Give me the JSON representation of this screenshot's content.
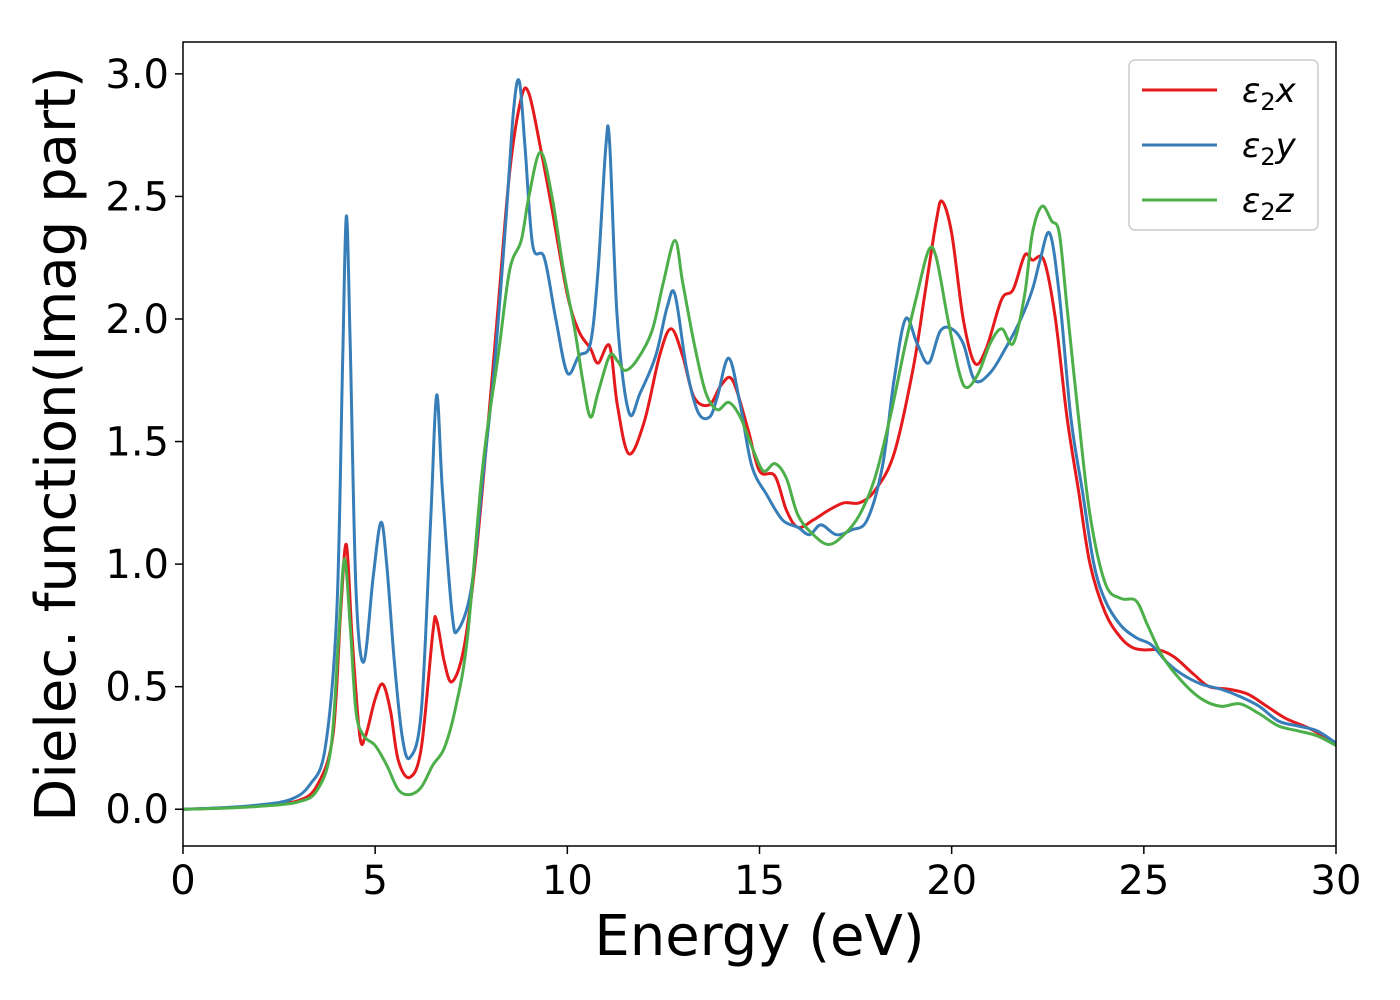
{
  "chart_data": {
    "type": "line",
    "title": "",
    "xlabel": "Energy (eV)",
    "ylabel": "Dielec. function(Imag part)",
    "xlim": [
      0,
      30
    ],
    "ylim": [
      -0.15,
      3.13
    ],
    "xticks": [
      0,
      5,
      10,
      15,
      20,
      25,
      30
    ],
    "yticks": [
      0.0,
      0.5,
      1.0,
      1.5,
      2.0,
      2.5,
      3.0
    ],
    "xtick_labels": [
      "0",
      "5",
      "10",
      "15",
      "20",
      "25",
      "30"
    ],
    "ytick_labels": [
      "0.0",
      "0.5",
      "1.0",
      "1.5",
      "2.0",
      "2.5",
      "3.0"
    ],
    "grid": false,
    "legend_position": "top-right",
    "series": [
      {
        "name": "ε2x",
        "legend_main": "ε",
        "legend_sub": "2",
        "legend_var": "x",
        "color": "#e41a1c",
        "points": [
          [
            0,
            0
          ],
          [
            1,
            0.005
          ],
          [
            2,
            0.015
          ],
          [
            3,
            0.035
          ],
          [
            3.5,
            0.1
          ],
          [
            3.9,
            0.3
          ],
          [
            4.1,
            0.8
          ],
          [
            4.25,
            1.08
          ],
          [
            4.4,
            0.7
          ],
          [
            4.6,
            0.3
          ],
          [
            4.75,
            0.3
          ],
          [
            5.0,
            0.45
          ],
          [
            5.2,
            0.51
          ],
          [
            5.4,
            0.4
          ],
          [
            5.6,
            0.2
          ],
          [
            5.9,
            0.13
          ],
          [
            6.2,
            0.25
          ],
          [
            6.5,
            0.72
          ],
          [
            6.6,
            0.77
          ],
          [
            6.8,
            0.6
          ],
          [
            7.0,
            0.52
          ],
          [
            7.3,
            0.65
          ],
          [
            7.6,
            1.0
          ],
          [
            7.9,
            1.5
          ],
          [
            8.2,
            2.05
          ],
          [
            8.5,
            2.6
          ],
          [
            8.8,
            2.9
          ],
          [
            9.0,
            2.92
          ],
          [
            9.3,
            2.7
          ],
          [
            9.6,
            2.45
          ],
          [
            10.0,
            2.1
          ],
          [
            10.3,
            1.95
          ],
          [
            10.6,
            1.88
          ],
          [
            10.8,
            1.82
          ],
          [
            11.1,
            1.89
          ],
          [
            11.3,
            1.65
          ],
          [
            11.6,
            1.45
          ],
          [
            12.0,
            1.58
          ],
          [
            12.4,
            1.85
          ],
          [
            12.7,
            1.96
          ],
          [
            13.0,
            1.85
          ],
          [
            13.3,
            1.68
          ],
          [
            13.7,
            1.65
          ],
          [
            14.0,
            1.73
          ],
          [
            14.3,
            1.75
          ],
          [
            14.7,
            1.55
          ],
          [
            15.0,
            1.38
          ],
          [
            15.4,
            1.36
          ],
          [
            15.7,
            1.22
          ],
          [
            16.0,
            1.15
          ],
          [
            16.4,
            1.18
          ],
          [
            16.8,
            1.22
          ],
          [
            17.2,
            1.25
          ],
          [
            17.6,
            1.25
          ],
          [
            18.0,
            1.3
          ],
          [
            18.5,
            1.45
          ],
          [
            19.0,
            1.8
          ],
          [
            19.3,
            2.1
          ],
          [
            19.6,
            2.4
          ],
          [
            19.75,
            2.48
          ],
          [
            20.0,
            2.35
          ],
          [
            20.3,
            2.0
          ],
          [
            20.6,
            1.82
          ],
          [
            20.9,
            1.88
          ],
          [
            21.3,
            2.08
          ],
          [
            21.6,
            2.12
          ],
          [
            21.9,
            2.26
          ],
          [
            22.1,
            2.24
          ],
          [
            22.4,
            2.24
          ],
          [
            22.7,
            2.0
          ],
          [
            23.0,
            1.6
          ],
          [
            23.3,
            1.3
          ],
          [
            23.6,
            1.0
          ],
          [
            24.0,
            0.8
          ],
          [
            24.4,
            0.7
          ],
          [
            24.7,
            0.66
          ],
          [
            25.0,
            0.65
          ],
          [
            25.4,
            0.65
          ],
          [
            25.8,
            0.62
          ],
          [
            26.3,
            0.55
          ],
          [
            26.7,
            0.5
          ],
          [
            27.2,
            0.49
          ],
          [
            27.7,
            0.47
          ],
          [
            28.2,
            0.42
          ],
          [
            28.7,
            0.37
          ],
          [
            29.3,
            0.33
          ],
          [
            30,
            0.27
          ]
        ]
      },
      {
        "name": "ε2y",
        "legend_main": "ε",
        "legend_sub": "2",
        "legend_var": "y",
        "color": "#377eb8",
        "points": [
          [
            0,
            0
          ],
          [
            1,
            0.006
          ],
          [
            2,
            0.018
          ],
          [
            2.8,
            0.04
          ],
          [
            3.3,
            0.1
          ],
          [
            3.7,
            0.25
          ],
          [
            4.0,
            0.8
          ],
          [
            4.15,
            1.8
          ],
          [
            4.25,
            2.42
          ],
          [
            4.35,
            1.9
          ],
          [
            4.5,
            0.9
          ],
          [
            4.7,
            0.6
          ],
          [
            4.95,
            0.95
          ],
          [
            5.15,
            1.17
          ],
          [
            5.3,
            1.0
          ],
          [
            5.5,
            0.6
          ],
          [
            5.7,
            0.3
          ],
          [
            5.9,
            0.21
          ],
          [
            6.2,
            0.4
          ],
          [
            6.45,
            1.2
          ],
          [
            6.6,
            1.69
          ],
          [
            6.75,
            1.3
          ],
          [
            7.0,
            0.8
          ],
          [
            7.15,
            0.73
          ],
          [
            7.5,
            0.9
          ],
          [
            7.8,
            1.35
          ],
          [
            8.1,
            1.8
          ],
          [
            8.4,
            2.4
          ],
          [
            8.6,
            2.85
          ],
          [
            8.75,
            2.97
          ],
          [
            8.9,
            2.7
          ],
          [
            9.1,
            2.3
          ],
          [
            9.4,
            2.25
          ],
          [
            9.7,
            2.0
          ],
          [
            10.0,
            1.78
          ],
          [
            10.3,
            1.85
          ],
          [
            10.6,
            1.9
          ],
          [
            10.8,
            2.2
          ],
          [
            11.0,
            2.7
          ],
          [
            11.1,
            2.72
          ],
          [
            11.3,
            2.0
          ],
          [
            11.6,
            1.62
          ],
          [
            11.9,
            1.7
          ],
          [
            12.3,
            1.85
          ],
          [
            12.6,
            2.05
          ],
          [
            12.8,
            2.1
          ],
          [
            13.1,
            1.8
          ],
          [
            13.4,
            1.62
          ],
          [
            13.7,
            1.6
          ],
          [
            13.9,
            1.68
          ],
          [
            14.2,
            1.84
          ],
          [
            14.5,
            1.65
          ],
          [
            14.8,
            1.4
          ],
          [
            15.2,
            1.28
          ],
          [
            15.6,
            1.18
          ],
          [
            16.0,
            1.15
          ],
          [
            16.3,
            1.12
          ],
          [
            16.6,
            1.16
          ],
          [
            17.0,
            1.12
          ],
          [
            17.4,
            1.14
          ],
          [
            17.8,
            1.18
          ],
          [
            18.2,
            1.4
          ],
          [
            18.5,
            1.75
          ],
          [
            18.8,
            2.0
          ],
          [
            19.1,
            1.9
          ],
          [
            19.4,
            1.82
          ],
          [
            19.7,
            1.95
          ],
          [
            20.0,
            1.96
          ],
          [
            20.3,
            1.9
          ],
          [
            20.6,
            1.75
          ],
          [
            21.0,
            1.78
          ],
          [
            21.4,
            1.88
          ],
          [
            21.8,
            2.0
          ],
          [
            22.1,
            2.12
          ],
          [
            22.3,
            2.24
          ],
          [
            22.55,
            2.35
          ],
          [
            22.8,
            2.1
          ],
          [
            23.1,
            1.6
          ],
          [
            23.4,
            1.3
          ],
          [
            23.7,
            1.0
          ],
          [
            24.0,
            0.85
          ],
          [
            24.4,
            0.75
          ],
          [
            24.8,
            0.7
          ],
          [
            25.2,
            0.67
          ],
          [
            25.6,
            0.6
          ],
          [
            26.0,
            0.55
          ],
          [
            26.5,
            0.51
          ],
          [
            27.0,
            0.49
          ],
          [
            27.5,
            0.46
          ],
          [
            28.0,
            0.42
          ],
          [
            28.5,
            0.36
          ],
          [
            29.0,
            0.34
          ],
          [
            29.5,
            0.32
          ],
          [
            30,
            0.27
          ]
        ]
      },
      {
        "name": "ε2z",
        "legend_main": "ε",
        "legend_sub": "2",
        "legend_var": "z",
        "color": "#4daf4a",
        "points": [
          [
            0,
            0
          ],
          [
            1,
            0.004
          ],
          [
            2,
            0.012
          ],
          [
            3,
            0.03
          ],
          [
            3.5,
            0.08
          ],
          [
            3.85,
            0.25
          ],
          [
            4.05,
            0.7
          ],
          [
            4.2,
            1.02
          ],
          [
            4.35,
            0.75
          ],
          [
            4.5,
            0.4
          ],
          [
            4.7,
            0.3
          ],
          [
            5.0,
            0.26
          ],
          [
            5.3,
            0.18
          ],
          [
            5.6,
            0.08
          ],
          [
            5.9,
            0.06
          ],
          [
            6.2,
            0.09
          ],
          [
            6.5,
            0.18
          ],
          [
            6.8,
            0.25
          ],
          [
            7.1,
            0.42
          ],
          [
            7.4,
            0.7
          ],
          [
            7.8,
            1.4
          ],
          [
            8.2,
            1.85
          ],
          [
            8.5,
            2.2
          ],
          [
            8.8,
            2.32
          ],
          [
            9.0,
            2.5
          ],
          [
            9.3,
            2.68
          ],
          [
            9.6,
            2.5
          ],
          [
            9.9,
            2.2
          ],
          [
            10.2,
            1.95
          ],
          [
            10.4,
            1.75
          ],
          [
            10.6,
            1.6
          ],
          [
            10.8,
            1.7
          ],
          [
            11.1,
            1.85
          ],
          [
            11.3,
            1.83
          ],
          [
            11.5,
            1.79
          ],
          [
            11.8,
            1.83
          ],
          [
            12.2,
            1.95
          ],
          [
            12.5,
            2.15
          ],
          [
            12.8,
            2.32
          ],
          [
            13.0,
            2.15
          ],
          [
            13.3,
            1.9
          ],
          [
            13.6,
            1.7
          ],
          [
            13.9,
            1.63
          ],
          [
            14.2,
            1.66
          ],
          [
            14.5,
            1.6
          ],
          [
            14.8,
            1.48
          ],
          [
            15.1,
            1.38
          ],
          [
            15.4,
            1.41
          ],
          [
            15.7,
            1.35
          ],
          [
            16.0,
            1.2
          ],
          [
            16.4,
            1.12
          ],
          [
            16.8,
            1.08
          ],
          [
            17.2,
            1.12
          ],
          [
            17.6,
            1.2
          ],
          [
            18.0,
            1.35
          ],
          [
            18.4,
            1.6
          ],
          [
            18.8,
            1.9
          ],
          [
            19.1,
            2.1
          ],
          [
            19.4,
            2.28
          ],
          [
            19.6,
            2.25
          ],
          [
            19.9,
            2.0
          ],
          [
            20.2,
            1.78
          ],
          [
            20.4,
            1.72
          ],
          [
            20.7,
            1.78
          ],
          [
            21.0,
            1.9
          ],
          [
            21.3,
            1.96
          ],
          [
            21.6,
            1.9
          ],
          [
            21.9,
            2.1
          ],
          [
            22.1,
            2.35
          ],
          [
            22.35,
            2.46
          ],
          [
            22.6,
            2.4
          ],
          [
            22.8,
            2.35
          ],
          [
            23.0,
            2.05
          ],
          [
            23.3,
            1.6
          ],
          [
            23.6,
            1.2
          ],
          [
            24.0,
            0.92
          ],
          [
            24.4,
            0.86
          ],
          [
            24.8,
            0.85
          ],
          [
            25.1,
            0.75
          ],
          [
            25.5,
            0.62
          ],
          [
            26.0,
            0.52
          ],
          [
            26.5,
            0.45
          ],
          [
            27.0,
            0.42
          ],
          [
            27.5,
            0.43
          ],
          [
            28.0,
            0.39
          ],
          [
            28.5,
            0.34
          ],
          [
            29.0,
            0.32
          ],
          [
            29.5,
            0.3
          ],
          [
            30,
            0.26
          ]
        ]
      }
    ]
  }
}
